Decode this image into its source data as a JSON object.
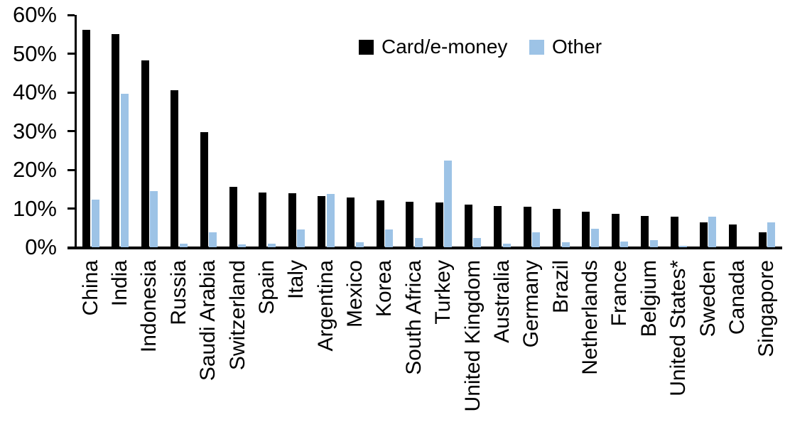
{
  "chart_data": {
    "type": "bar",
    "title": "",
    "xlabel": "",
    "ylabel": "",
    "ylim": [
      0,
      60
    ],
    "yticks": [
      "0%",
      "10%",
      "20%",
      "30%",
      "40%",
      "50%",
      "60%"
    ],
    "ytick_values": [
      0,
      10,
      20,
      30,
      40,
      50,
      60
    ],
    "grid": false,
    "legend_position": "top-center",
    "categories": [
      "China",
      "India",
      "Indonesia",
      "Russia",
      "Saudi Arabia",
      "Switzerland",
      "Spain",
      "Italy",
      "Argentina",
      "Mexico",
      "Korea",
      "South Africa",
      "Turkey",
      "United Kingdom",
      "Australia",
      "Germany",
      "Brazil",
      "Netherlands",
      "France",
      "Belgium",
      "United States*",
      "Sweden",
      "Canada",
      "Singapore"
    ],
    "series": [
      {
        "name": "Card/e-money",
        "color": "#000000",
        "values": [
          56.2,
          55.0,
          48.3,
          40.5,
          29.8,
          15.6,
          14.2,
          14.0,
          13.3,
          12.9,
          12.2,
          11.7,
          11.5,
          11.0,
          10.7,
          10.5,
          10.0,
          9.2,
          8.6,
          8.1,
          7.8,
          6.4,
          5.8,
          3.8
        ]
      },
      {
        "name": "Other",
        "color": "#9DC3E6",
        "values": [
          12.3,
          39.7,
          14.5,
          1.0,
          3.9,
          0.8,
          1.0,
          4.6,
          13.8,
          1.3,
          4.6,
          2.3,
          22.4,
          2.3,
          0.9,
          3.9,
          1.2,
          4.7,
          1.4,
          1.9,
          0.3,
          7.9,
          0.0,
          6.5
        ]
      }
    ],
    "axis_color": "#000000"
  },
  "legend": {
    "card_label": "Card/e-money",
    "other_label": "Other"
  }
}
